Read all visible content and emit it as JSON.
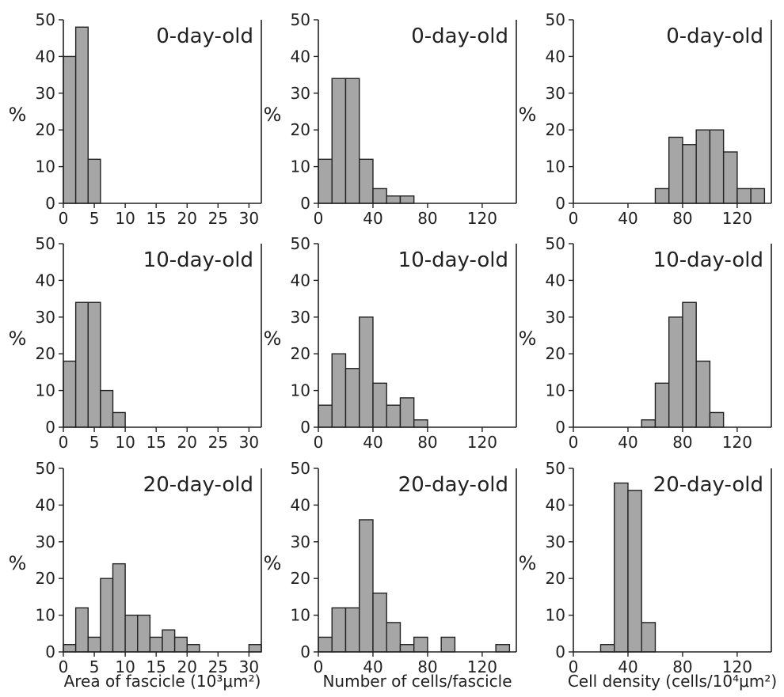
{
  "y_unit_label": "%",
  "bar_color": "#a6a6a6",
  "bar_stroke": "#222222",
  "chart_data": [
    {
      "type": "bar",
      "panel_title": "0-day-old",
      "xlabel": "",
      "ylabel": "%",
      "xlim": [
        0,
        32
      ],
      "ylim": [
        0,
        50
      ],
      "x_ticks": [
        0,
        5,
        10,
        15,
        20,
        25,
        30
      ],
      "y_ticks": [
        0,
        10,
        20,
        30,
        40,
        50
      ],
      "bin_width": 2,
      "bin_starts": [
        0,
        2,
        4
      ],
      "values": [
        40,
        48,
        12
      ]
    },
    {
      "type": "bar",
      "panel_title": "0-day-old",
      "xlabel": "",
      "ylabel": "%",
      "xlim": [
        0,
        145
      ],
      "ylim": [
        0,
        50
      ],
      "x_ticks": [
        0,
        40,
        80,
        120
      ],
      "y_ticks": [
        0,
        10,
        20,
        30,
        40,
        50
      ],
      "bin_width": 10,
      "bin_starts": [
        0,
        10,
        20,
        30,
        40,
        50,
        60
      ],
      "values": [
        12,
        34,
        34,
        12,
        4,
        2,
        2
      ]
    },
    {
      "type": "bar",
      "panel_title": "0-day-old",
      "xlabel": "",
      "ylabel": "%",
      "xlim": [
        0,
        145
      ],
      "ylim": [
        0,
        50
      ],
      "x_ticks": [
        0,
        40,
        80,
        120
      ],
      "y_ticks": [
        0,
        10,
        20,
        30,
        40,
        50
      ],
      "bin_width": 10,
      "bin_starts": [
        60,
        70,
        80,
        90,
        100,
        110,
        120,
        130
      ],
      "values": [
        4,
        18,
        16,
        20,
        20,
        14,
        4,
        4
      ]
    },
    {
      "type": "bar",
      "panel_title": "10-day-old",
      "xlabel": "",
      "ylabel": "%",
      "xlim": [
        0,
        32
      ],
      "ylim": [
        0,
        50
      ],
      "x_ticks": [
        0,
        5,
        10,
        15,
        20,
        25,
        30
      ],
      "y_ticks": [
        0,
        10,
        20,
        30,
        40,
        50
      ],
      "bin_width": 2,
      "bin_starts": [
        0,
        2,
        4,
        6,
        8
      ],
      "values": [
        18,
        34,
        34,
        10,
        4
      ]
    },
    {
      "type": "bar",
      "panel_title": "10-day-old",
      "xlabel": "",
      "ylabel": "%",
      "xlim": [
        0,
        145
      ],
      "ylim": [
        0,
        50
      ],
      "x_ticks": [
        0,
        40,
        80,
        120
      ],
      "y_ticks": [
        0,
        10,
        20,
        30,
        40,
        50
      ],
      "bin_width": 10,
      "bin_starts": [
        0,
        10,
        20,
        30,
        40,
        50,
        60,
        70
      ],
      "values": [
        6,
        20,
        16,
        30,
        12,
        6,
        8,
        2
      ]
    },
    {
      "type": "bar",
      "panel_title": "10-day-old",
      "xlabel": "",
      "ylabel": "%",
      "xlim": [
        0,
        145
      ],
      "ylim": [
        0,
        50
      ],
      "x_ticks": [
        0,
        40,
        80,
        120
      ],
      "y_ticks": [
        0,
        10,
        20,
        30,
        40,
        50
      ],
      "bin_width": 10,
      "bin_starts": [
        50,
        60,
        70,
        80,
        90,
        100
      ],
      "values": [
        2,
        12,
        30,
        34,
        18,
        4
      ]
    },
    {
      "type": "bar",
      "panel_title": "20-day-old",
      "xlabel": "Area of fascicle (10³μm²)",
      "ylabel": "%",
      "xlim": [
        0,
        32
      ],
      "ylim": [
        0,
        50
      ],
      "x_ticks": [
        0,
        5,
        10,
        15,
        20,
        25,
        30
      ],
      "y_ticks": [
        0,
        10,
        20,
        30,
        40,
        50
      ],
      "bin_width": 2,
      "bin_starts": [
        0,
        2,
        4,
        6,
        8,
        10,
        12,
        14,
        16,
        18,
        20,
        30
      ],
      "values": [
        2,
        12,
        4,
        20,
        24,
        10,
        10,
        4,
        6,
        4,
        2,
        2
      ]
    },
    {
      "type": "bar",
      "panel_title": "20-day-old",
      "xlabel": "Number of cells/fascicle",
      "ylabel": "%",
      "xlim": [
        0,
        145
      ],
      "ylim": [
        0,
        50
      ],
      "x_ticks": [
        0,
        40,
        80,
        120
      ],
      "y_ticks": [
        0,
        10,
        20,
        30,
        40,
        50
      ],
      "bin_width": 10,
      "bin_starts": [
        0,
        10,
        20,
        30,
        40,
        50,
        60,
        70,
        90,
        130
      ],
      "values": [
        4,
        12,
        12,
        36,
        16,
        8,
        2,
        4,
        4,
        2
      ]
    },
    {
      "type": "bar",
      "panel_title": "20-day-old",
      "xlabel": "Cell density (cells/10⁴μm²)",
      "ylabel": "%",
      "xlim": [
        0,
        145
      ],
      "ylim": [
        0,
        50
      ],
      "x_ticks": [
        0,
        40,
        80,
        120
      ],
      "y_ticks": [
        0,
        10,
        20,
        30,
        40,
        50
      ],
      "bin_width": 10,
      "bin_starts": [
        20,
        30,
        40,
        50
      ],
      "values": [
        2,
        46,
        44,
        8
      ]
    }
  ]
}
